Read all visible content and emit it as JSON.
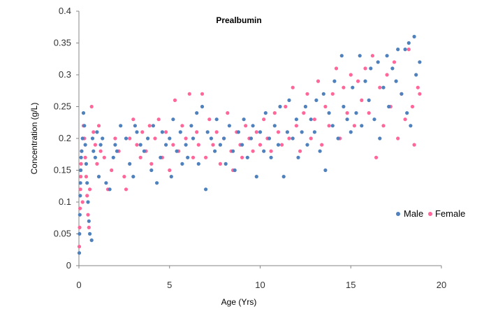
{
  "chart_data": {
    "type": "scatter",
    "title": "Prealbumin",
    "xlabel": "Age (Yrs)",
    "ylabel": "Concentration (g/L)",
    "xlim": [
      0,
      20
    ],
    "ylim": [
      0,
      0.4
    ],
    "xticks": [
      0,
      5,
      10,
      15,
      20
    ],
    "yticks": [
      0,
      0.05,
      0.1,
      0.15,
      0.2,
      0.25,
      0.3,
      0.35,
      0.4
    ],
    "xtick_labels": [
      "0",
      "5",
      "10",
      "15",
      "20"
    ],
    "ytick_labels": [
      "0",
      "0.05",
      "0.1",
      "0.15",
      "0.2",
      "0.25",
      "0.3",
      "0.35",
      "0.4"
    ],
    "grid": false,
    "legend_position": "right",
    "series": [
      {
        "name": "Male",
        "color": "#4F81BD",
        "points": [
          [
            0.02,
            0.02
          ],
          [
            0.03,
            0.05
          ],
          [
            0.05,
            0.08
          ],
          [
            0.07,
            0.11
          ],
          [
            0.08,
            0.13
          ],
          [
            0.1,
            0.15
          ],
          [
            0.12,
            0.17
          ],
          [
            0.15,
            0.18
          ],
          [
            0.2,
            0.2
          ],
          [
            0.25,
            0.24
          ],
          [
            0.3,
            0.22
          ],
          [
            0.35,
            0.19
          ],
          [
            0.4,
            0.16
          ],
          [
            0.45,
            0.13
          ],
          [
            0.5,
            0.1
          ],
          [
            0.55,
            0.07
          ],
          [
            0.6,
            0.05
          ],
          [
            0.7,
            0.04
          ],
          [
            0.75,
            0.2
          ],
          [
            0.8,
            0.18
          ],
          [
            0.9,
            0.17
          ],
          [
            1.0,
            0.21
          ],
          [
            1.1,
            0.14
          ],
          [
            1.2,
            0.19
          ],
          [
            1.3,
            0.2
          ],
          [
            1.5,
            0.13
          ],
          [
            1.7,
            0.12
          ],
          [
            1.9,
            0.17
          ],
          [
            2.0,
            0.19
          ],
          [
            2.1,
            0.18
          ],
          [
            2.3,
            0.22
          ],
          [
            2.6,
            0.2
          ],
          [
            2.8,
            0.16
          ],
          [
            3.0,
            0.14
          ],
          [
            3.1,
            0.22
          ],
          [
            3.2,
            0.21
          ],
          [
            3.4,
            0.19
          ],
          [
            3.6,
            0.18
          ],
          [
            3.8,
            0.2
          ],
          [
            4.0,
            0.15
          ],
          [
            4.1,
            0.22
          ],
          [
            4.3,
            0.13
          ],
          [
            4.5,
            0.17
          ],
          [
            4.6,
            0.21
          ],
          [
            4.8,
            0.19
          ],
          [
            5.0,
            0.2
          ],
          [
            5.1,
            0.14
          ],
          [
            5.2,
            0.23
          ],
          [
            5.4,
            0.18
          ],
          [
            5.6,
            0.21
          ],
          [
            5.7,
            0.16
          ],
          [
            5.9,
            0.19
          ],
          [
            6.0,
            0.17
          ],
          [
            6.2,
            0.22
          ],
          [
            6.3,
            0.2
          ],
          [
            6.5,
            0.24
          ],
          [
            6.6,
            0.16
          ],
          [
            6.8,
            0.25
          ],
          [
            7.0,
            0.12
          ],
          [
            7.1,
            0.21
          ],
          [
            7.3,
            0.2
          ],
          [
            7.5,
            0.18
          ],
          [
            7.6,
            0.23
          ],
          [
            7.8,
            0.19
          ],
          [
            8.0,
            0.2
          ],
          [
            8.1,
            0.16
          ],
          [
            8.3,
            0.22
          ],
          [
            8.5,
            0.18
          ],
          [
            8.6,
            0.15
          ],
          [
            8.8,
            0.21
          ],
          [
            9.0,
            0.19
          ],
          [
            9.1,
            0.23
          ],
          [
            9.3,
            0.17
          ],
          [
            9.5,
            0.2
          ],
          [
            9.6,
            0.22
          ],
          [
            9.8,
            0.14
          ],
          [
            10.0,
            0.21
          ],
          [
            10.2,
            0.18
          ],
          [
            10.3,
            0.24
          ],
          [
            10.5,
            0.2
          ],
          [
            10.6,
            0.17
          ],
          [
            10.8,
            0.22
          ],
          [
            11.0,
            0.19
          ],
          [
            11.1,
            0.25
          ],
          [
            11.3,
            0.14
          ],
          [
            11.5,
            0.21
          ],
          [
            11.6,
            0.26
          ],
          [
            11.8,
            0.2
          ],
          [
            12.0,
            0.23
          ],
          [
            12.1,
            0.17
          ],
          [
            12.3,
            0.21
          ],
          [
            12.5,
            0.25
          ],
          [
            12.6,
            0.19
          ],
          [
            12.8,
            0.23
          ],
          [
            13.0,
            0.21
          ],
          [
            13.1,
            0.26
          ],
          [
            13.3,
            0.18
          ],
          [
            13.5,
            0.27
          ],
          [
            13.6,
            0.15
          ],
          [
            13.8,
            0.24
          ],
          [
            14.0,
            0.22
          ],
          [
            14.1,
            0.29
          ],
          [
            14.3,
            0.2
          ],
          [
            14.5,
            0.33
          ],
          [
            14.6,
            0.25
          ],
          [
            14.8,
            0.23
          ],
          [
            15.0,
            0.21
          ],
          [
            15.1,
            0.28
          ],
          [
            15.3,
            0.24
          ],
          [
            15.5,
            0.33
          ],
          [
            15.6,
            0.22
          ],
          [
            15.8,
            0.29
          ],
          [
            16.0,
            0.26
          ],
          [
            16.1,
            0.31
          ],
          [
            16.3,
            0.23
          ],
          [
            16.5,
            0.32
          ],
          [
            16.6,
            0.2
          ],
          [
            16.8,
            0.28
          ],
          [
            17.0,
            0.33
          ],
          [
            17.1,
            0.25
          ],
          [
            17.3,
            0.31
          ],
          [
            17.5,
            0.29
          ],
          [
            17.6,
            0.34
          ],
          [
            17.8,
            0.27
          ],
          [
            18.0,
            0.34
          ],
          [
            18.1,
            0.24
          ],
          [
            18.2,
            0.35
          ],
          [
            18.3,
            0.22
          ],
          [
            18.5,
            0.36
          ],
          [
            18.6,
            0.3
          ],
          [
            18.8,
            0.32
          ]
        ]
      },
      {
        "name": "Female",
        "color": "#FF6699",
        "points": [
          [
            0.02,
            0.03
          ],
          [
            0.04,
            0.06
          ],
          [
            0.06,
            0.09
          ],
          [
            0.08,
            0.12
          ],
          [
            0.1,
            0.14
          ],
          [
            0.12,
            0.16
          ],
          [
            0.15,
            0.18
          ],
          [
            0.2,
            0.1
          ],
          [
            0.25,
            0.22
          ],
          [
            0.3,
            0.2
          ],
          [
            0.35,
            0.17
          ],
          [
            0.4,
            0.14
          ],
          [
            0.45,
            0.11
          ],
          [
            0.5,
            0.08
          ],
          [
            0.55,
            0.06
          ],
          [
            0.6,
            0.12
          ],
          [
            0.7,
            0.25
          ],
          [
            0.8,
            0.21
          ],
          [
            0.9,
            0.19
          ],
          [
            1.0,
            0.16
          ],
          [
            1.1,
            0.22
          ],
          [
            1.2,
            0.18
          ],
          [
            1.4,
            0.17
          ],
          [
            1.6,
            0.12
          ],
          [
            1.8,
            0.15
          ],
          [
            2.0,
            0.2
          ],
          [
            2.2,
            0.18
          ],
          [
            2.5,
            0.14
          ],
          [
            2.6,
            0.12
          ],
          [
            2.8,
            0.2
          ],
          [
            3.0,
            0.23
          ],
          [
            3.2,
            0.19
          ],
          [
            3.4,
            0.17
          ],
          [
            3.5,
            0.21
          ],
          [
            3.7,
            0.18
          ],
          [
            3.9,
            0.22
          ],
          [
            4.0,
            0.16
          ],
          [
            4.2,
            0.2
          ],
          [
            4.4,
            0.23
          ],
          [
            4.6,
            0.17
          ],
          [
            4.8,
            0.21
          ],
          [
            5.0,
            0.15
          ],
          [
            5.2,
            0.19
          ],
          [
            5.3,
            0.26
          ],
          [
            5.5,
            0.18
          ],
          [
            5.7,
            0.22
          ],
          [
            5.9,
            0.2
          ],
          [
            6.1,
            0.27
          ],
          [
            6.3,
            0.17
          ],
          [
            6.5,
            0.21
          ],
          [
            6.6,
            0.19
          ],
          [
            6.8,
            0.27
          ],
          [
            7.0,
            0.17
          ],
          [
            7.2,
            0.23
          ],
          [
            7.4,
            0.19
          ],
          [
            7.6,
            0.21
          ],
          [
            7.8,
            0.16
          ],
          [
            8.0,
            0.2
          ],
          [
            8.2,
            0.24
          ],
          [
            8.4,
            0.18
          ],
          [
            8.5,
            0.15
          ],
          [
            8.7,
            0.21
          ],
          [
            8.9,
            0.19
          ],
          [
            9.0,
            0.17
          ],
          [
            9.2,
            0.22
          ],
          [
            9.4,
            0.2
          ],
          [
            9.6,
            0.18
          ],
          [
            9.8,
            0.21
          ],
          [
            10.0,
            0.19
          ],
          [
            10.2,
            0.23
          ],
          [
            10.4,
            0.2
          ],
          [
            10.6,
            0.18
          ],
          [
            10.8,
            0.24
          ],
          [
            11.0,
            0.21
          ],
          [
            11.2,
            0.19
          ],
          [
            11.4,
            0.25
          ],
          [
            11.6,
            0.2
          ],
          [
            11.8,
            0.28
          ],
          [
            12.0,
            0.22
          ],
          [
            12.2,
            0.18
          ],
          [
            12.4,
            0.24
          ],
          [
            12.6,
            0.27
          ],
          [
            12.8,
            0.2
          ],
          [
            13.0,
            0.23
          ],
          [
            13.2,
            0.29
          ],
          [
            13.4,
            0.19
          ],
          [
            13.6,
            0.25
          ],
          [
            13.8,
            0.22
          ],
          [
            14.0,
            0.27
          ],
          [
            14.2,
            0.31
          ],
          [
            14.4,
            0.2
          ],
          [
            14.6,
            0.28
          ],
          [
            14.8,
            0.24
          ],
          [
            15.0,
            0.3
          ],
          [
            15.2,
            0.22
          ],
          [
            15.4,
            0.29
          ],
          [
            15.6,
            0.26
          ],
          [
            15.8,
            0.31
          ],
          [
            16.0,
            0.24
          ],
          [
            16.2,
            0.33
          ],
          [
            16.4,
            0.17
          ],
          [
            16.6,
            0.28
          ],
          [
            16.8,
            0.22
          ],
          [
            17.0,
            0.3
          ],
          [
            17.2,
            0.25
          ],
          [
            17.4,
            0.32
          ],
          [
            17.6,
            0.2
          ],
          [
            17.8,
            0.27
          ],
          [
            18.0,
            0.23
          ],
          [
            18.2,
            0.34
          ],
          [
            18.4,
            0.25
          ],
          [
            18.5,
            0.19
          ],
          [
            18.7,
            0.28
          ],
          [
            18.8,
            0.27
          ]
        ]
      }
    ]
  }
}
